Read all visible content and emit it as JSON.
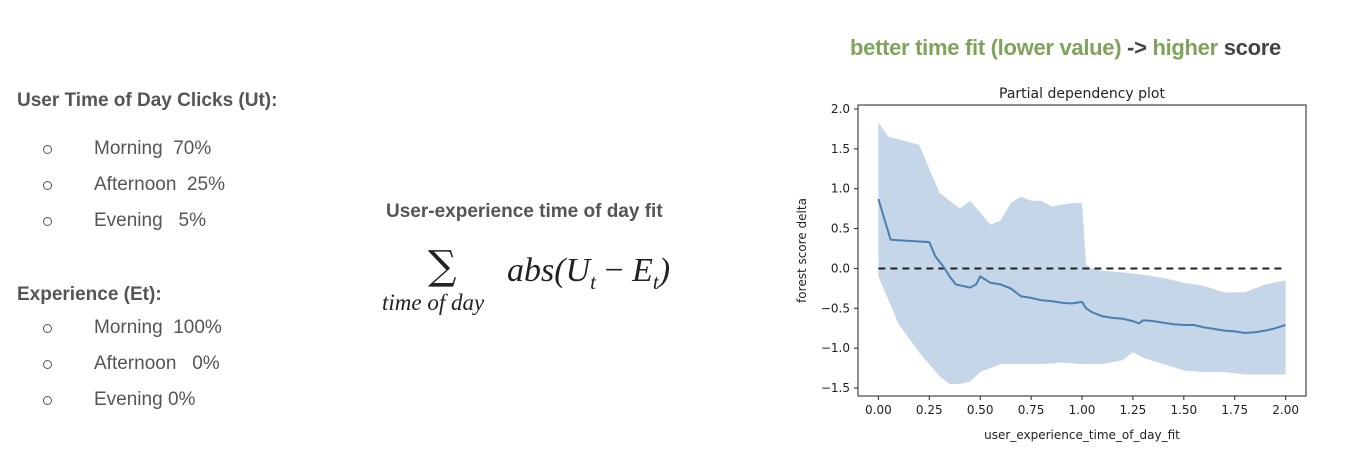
{
  "user_clicks": {
    "title": "User Time of Day Clicks (Ut):",
    "items": [
      "Morning  70%",
      "Afternoon  25%",
      "Evening   5%"
    ]
  },
  "experience": {
    "title": "Experience (Et):",
    "items": [
      "Morning  100%",
      "Afternoon   0%",
      "Evening 0%"
    ]
  },
  "formula": {
    "title": "User-experience time of day fit",
    "sum_symbol": "∑",
    "sum_subscript": "time of day",
    "expr_prefix": "abs(U",
    "expr_sub1": "t",
    "expr_op": " − ",
    "expr_mid": "E",
    "expr_sub2": "t",
    "expr_suffix": ")"
  },
  "headline": {
    "part1": "better time fit (lower value)",
    "part2": " -> ",
    "part3": "higher",
    "part4": " score",
    "green": "#7ea35a",
    "dark": "#444444"
  },
  "chart_data": {
    "type": "line",
    "title": "Partial dependency plot",
    "xlabel": "user_experience_time_of_day_fit",
    "ylabel": "forest score delta",
    "xlim": [
      -0.1,
      2.1
    ],
    "ylim": [
      -1.6,
      2.05
    ],
    "xticks": [
      0.0,
      0.25,
      0.5,
      0.75,
      1.0,
      1.25,
      1.5,
      1.75,
      2.0
    ],
    "xtick_labels": [
      "0.00",
      "0.25",
      "0.50",
      "0.75",
      "1.00",
      "1.25",
      "1.50",
      "1.75",
      "2.00"
    ],
    "yticks": [
      2.0,
      1.5,
      1.0,
      0.5,
      0.0,
      -0.5,
      -1.0,
      -1.5
    ],
    "ytick_labels": [
      "2.0",
      "1.5",
      "1.0",
      "0.5",
      "0.0",
      "−0.5",
      "−1.0",
      "−1.5"
    ],
    "line_color": "#4a7fb5",
    "band_color": "#c5d6e8",
    "mean": {
      "x": [
        0.0,
        0.06,
        0.12,
        0.25,
        0.28,
        0.32,
        0.35,
        0.38,
        0.45,
        0.48,
        0.5,
        0.55,
        0.6,
        0.65,
        0.7,
        0.75,
        0.8,
        0.85,
        0.9,
        0.95,
        1.0,
        1.02,
        1.05,
        1.1,
        1.15,
        1.2,
        1.25,
        1.28,
        1.3,
        1.35,
        1.4,
        1.45,
        1.5,
        1.55,
        1.6,
        1.65,
        1.7,
        1.75,
        1.8,
        1.85,
        1.9,
        1.95,
        2.0
      ],
      "y": [
        0.87,
        0.36,
        0.35,
        0.33,
        0.15,
        0.02,
        -0.1,
        -0.2,
        -0.24,
        -0.2,
        -0.1,
        -0.18,
        -0.2,
        -0.25,
        -0.35,
        -0.37,
        -0.4,
        -0.41,
        -0.43,
        -0.44,
        -0.42,
        -0.5,
        -0.55,
        -0.6,
        -0.62,
        -0.63,
        -0.66,
        -0.69,
        -0.65,
        -0.66,
        -0.68,
        -0.7,
        -0.71,
        -0.71,
        -0.74,
        -0.76,
        -0.78,
        -0.79,
        -0.81,
        -0.8,
        -0.78,
        -0.75,
        -0.71
      ]
    },
    "upper": {
      "x": [
        0.0,
        0.05,
        0.1,
        0.2,
        0.3,
        0.35,
        0.4,
        0.45,
        0.5,
        0.55,
        0.6,
        0.65,
        0.7,
        0.75,
        0.8,
        0.85,
        0.9,
        0.95,
        1.0,
        1.02,
        1.05,
        1.1,
        1.2,
        1.3,
        1.4,
        1.5,
        1.6,
        1.7,
        1.8,
        1.9,
        2.0
      ],
      "y": [
        1.83,
        1.65,
        1.62,
        1.55,
        0.95,
        0.85,
        0.75,
        0.85,
        0.7,
        0.55,
        0.6,
        0.82,
        0.9,
        0.85,
        0.85,
        0.78,
        0.8,
        0.82,
        0.82,
        0.05,
        0.0,
        -0.03,
        -0.05,
        -0.08,
        -0.12,
        -0.18,
        -0.22,
        -0.3,
        -0.3,
        -0.2,
        -0.15
      ]
    },
    "lower": {
      "x": [
        0.0,
        0.1,
        0.2,
        0.3,
        0.35,
        0.4,
        0.45,
        0.5,
        0.6,
        0.7,
        0.8,
        0.9,
        1.0,
        1.1,
        1.2,
        1.25,
        1.3,
        1.4,
        1.5,
        1.6,
        1.7,
        1.8,
        1.9,
        2.0
      ],
      "y": [
        -0.1,
        -0.7,
        -1.05,
        -1.35,
        -1.45,
        -1.45,
        -1.42,
        -1.3,
        -1.2,
        -1.2,
        -1.2,
        -1.18,
        -1.2,
        -1.2,
        -1.15,
        -1.05,
        -1.12,
        -1.2,
        -1.28,
        -1.3,
        -1.3,
        -1.33,
        -1.33,
        -1.33
      ]
    },
    "reference_line": {
      "y": 0.0,
      "style": "dashed"
    }
  }
}
